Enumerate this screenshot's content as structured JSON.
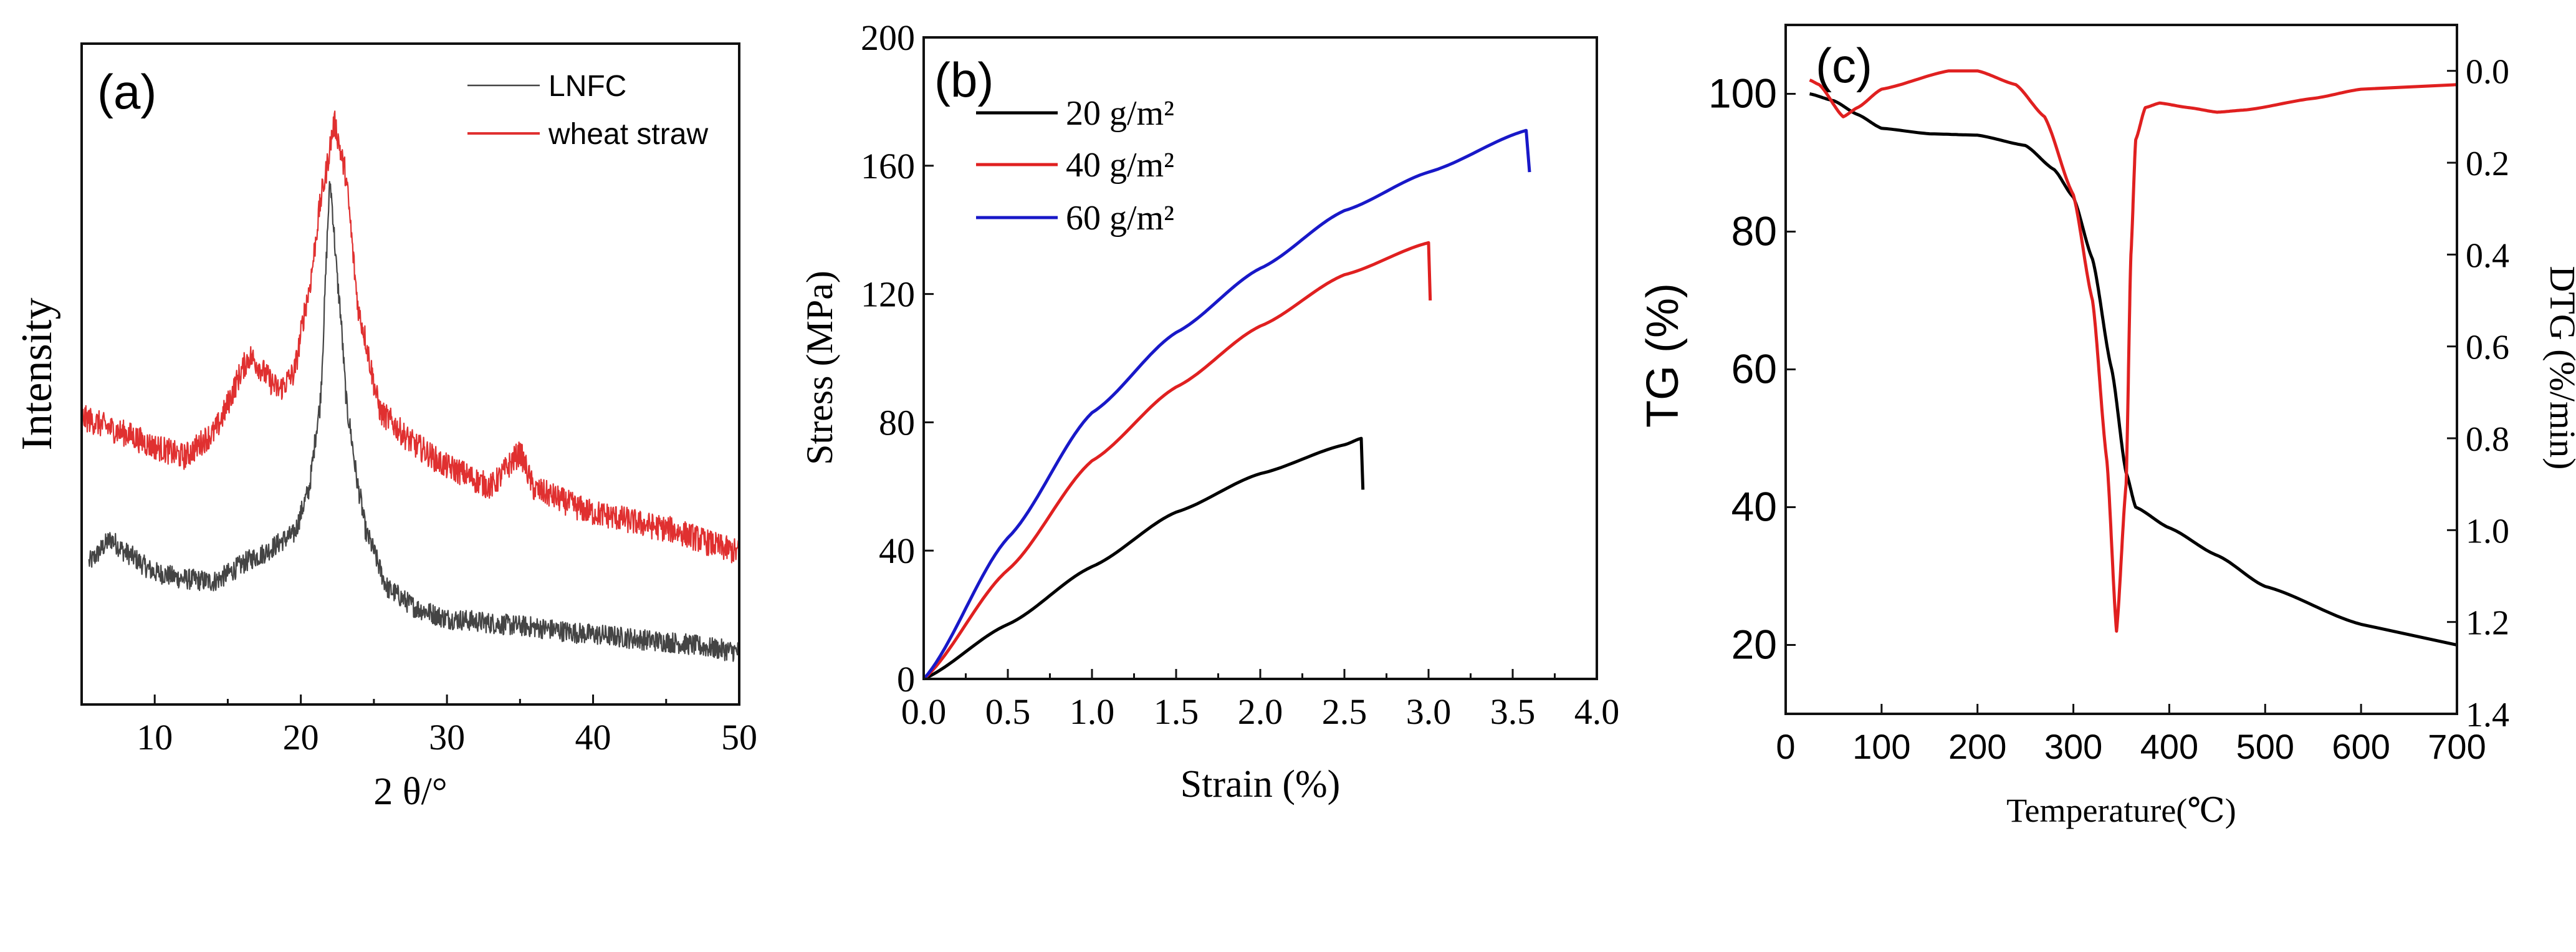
{
  "chart_data": [
    {
      "panel_label": "(a)",
      "type": "line",
      "title": "",
      "xlabel": "2 θ/°",
      "ylabel": "Intensity",
      "xlim": [
        5,
        50
      ],
      "ylim": [
        0,
        100
      ],
      "y_units": "arbitrary",
      "xticks": [
        10,
        20,
        30,
        40,
        50
      ],
      "xtick_labels": [
        "10",
        "20",
        "30",
        "40",
        "50"
      ],
      "minor_xticks": [
        15,
        25,
        35,
        45
      ],
      "grid": false,
      "legend": "top-right",
      "series": [
        {
          "name": "LNFC",
          "color": "#444444",
          "noise_amplitude": 1.6,
          "x": [
            5.5,
            7,
            8,
            10,
            12,
            14,
            17,
            19.5,
            20.5,
            21.3,
            22,
            22.6,
            23.2,
            24,
            24.5,
            26,
            28,
            30,
            35,
            40,
            45,
            50
          ],
          "y": [
            21.5,
            25,
            23,
            20,
            19,
            18.6,
            22.4,
            25.7,
            32,
            45,
            79,
            62,
            44,
            32,
            25.7,
            17.4,
            14.5,
            13,
            11.9,
            10.6,
            9.5,
            8
          ]
        },
        {
          "name": "wheat straw",
          "color": "#e03030",
          "noise_amplitude": 2.0,
          "x": [
            5,
            8,
            10,
            12,
            14,
            16.5,
            18.5,
            19.5,
            20.5,
            21.5,
            22.3,
            23,
            24,
            25.5,
            28,
            30,
            33,
            35,
            36,
            40,
            45,
            50
          ],
          "y": [
            43.4,
            41,
            39,
            37.5,
            41,
            52.7,
            47.6,
            50,
            62,
            78,
            88,
            81,
            59,
            44,
            39,
            36,
            33,
            38,
            32.5,
            29,
            26.6,
            23
          ]
        }
      ]
    },
    {
      "panel_label": "(b)",
      "type": "line",
      "title": "",
      "xlabel": "Strain (%)",
      "ylabel": "Stress (MPa)",
      "xlim": [
        0,
        4
      ],
      "ylim": [
        0,
        200
      ],
      "xticks": [
        0,
        0.5,
        1,
        1.5,
        2,
        2.5,
        3,
        3.5,
        4
      ],
      "xtick_labels": [
        "0.0",
        "0.5",
        "1.0",
        "1.5",
        "2.0",
        "2.5",
        "3.0",
        "3.5",
        "4.0"
      ],
      "yticks": [
        0,
        40,
        80,
        120,
        160,
        200
      ],
      "ytick_labels": [
        "0",
        "40",
        "80",
        "120",
        "160",
        "200"
      ],
      "grid": false,
      "legend": "top-left",
      "series": [
        {
          "name": "20 g/m²",
          "color": "#000000",
          "x": [
            0,
            0.5,
            1.0,
            1.5,
            2.0,
            2.5,
            2.6,
            2.61
          ],
          "y": [
            0,
            17,
            35,
            52,
            64,
            73,
            75,
            59
          ]
        },
        {
          "name": "40 g/m²",
          "color": "#e02020",
          "x": [
            0,
            0.5,
            1.0,
            1.5,
            2.0,
            2.5,
            3.0,
            3.01
          ],
          "y": [
            0,
            34,
            68,
            91,
            110,
            126,
            136,
            118
          ]
        },
        {
          "name": "60 g/m²",
          "color": "#1818c8",
          "x": [
            0,
            0.5,
            1.0,
            1.5,
            2.0,
            2.5,
            3.0,
            3.58,
            3.6
          ],
          "y": [
            0,
            44,
            83,
            108,
            128,
            146,
            158,
            171,
            158
          ]
        }
      ]
    },
    {
      "panel_label": "(c)",
      "type": "line",
      "title": "",
      "xlabel": "Temperature(℃)",
      "ylabel": "TG (%)",
      "ylabel_right": "DTG (%/min)",
      "xlim": [
        0,
        700
      ],
      "ylim": [
        10,
        110
      ],
      "ylim_right": [
        -0.1,
        1.4
      ],
      "right_axis_inverted": true,
      "xticks": [
        0,
        100,
        200,
        300,
        400,
        500,
        600,
        700
      ],
      "xtick_labels": [
        "0",
        "100",
        "200",
        "300",
        "400",
        "500",
        "600",
        "700"
      ],
      "yticks": [
        20,
        40,
        60,
        80,
        100
      ],
      "ytick_labels": [
        "20",
        "40",
        "60",
        "80",
        "100"
      ],
      "yticks_right": [
        0,
        0.2,
        0.4,
        0.6,
        0.8,
        1.0,
        1.2,
        1.4
      ],
      "ytick_labels_right": [
        "0.0",
        "0.2",
        "0.4",
        "0.6",
        "0.8",
        "1.0",
        "1.2",
        "1.4"
      ],
      "grid": false,
      "series": [
        {
          "name": "TG",
          "axis": "left",
          "color": "#000000",
          "x": [
            25,
            50,
            75,
            100,
            150,
            200,
            250,
            280,
            300,
            320,
            340,
            355,
            365,
            400,
            450,
            500,
            600,
            700
          ],
          "y": [
            100,
            99,
            97,
            95,
            94.2,
            94,
            92.5,
            89,
            85,
            76,
            60,
            45,
            40,
            37,
            33,
            28.5,
            23,
            20
          ]
        },
        {
          "name": "DTG",
          "axis": "right",
          "color": "#e02020",
          "x": [
            25,
            35,
            60,
            75,
            100,
            170,
            200,
            240,
            270,
            300,
            320,
            335,
            345,
            355,
            360,
            365,
            375,
            390,
            420,
            450,
            480,
            550,
            600,
            700
          ],
          "y": [
            0.02,
            0.03,
            0.1,
            0.08,
            0.04,
            0.0,
            0.0,
            0.03,
            0.1,
            0.27,
            0.5,
            0.85,
            1.22,
            0.9,
            0.4,
            0.15,
            0.08,
            0.07,
            0.08,
            0.09,
            0.085,
            0.06,
            0.04,
            0.03
          ]
        }
      ]
    }
  ]
}
